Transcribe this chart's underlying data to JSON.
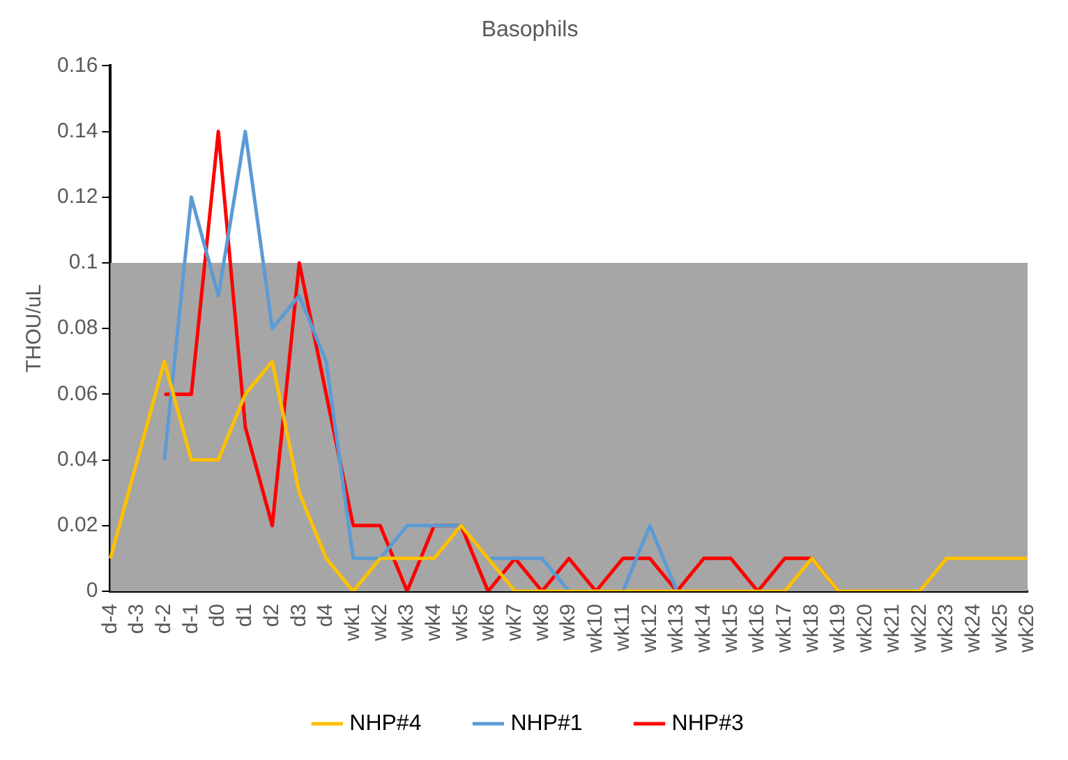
{
  "chart_data": {
    "type": "line",
    "title": "Basophils",
    "ylabel": "THOU/uL",
    "categories": [
      "d-4",
      "d-3",
      "d-2",
      "d-1",
      "d0",
      "d1",
      "d2",
      "d3",
      "d4",
      "wk1",
      "wk2",
      "wk3",
      "wk4",
      "wk5",
      "wk6",
      "wk7",
      "wk8",
      "wk9",
      "wk10",
      "wk11",
      "wk12",
      "wk13",
      "wk14",
      "wk15",
      "wk16",
      "wk17",
      "wk18",
      "wk19",
      "wk20",
      "wk21",
      "wk22",
      "wk23",
      "wk24",
      "wk25",
      "wk26"
    ],
    "series": [
      {
        "name": "NHP#4",
        "color": "#ffc000",
        "values": [
          0.01,
          0.04,
          0.07,
          0.04,
          0.04,
          0.06,
          0.07,
          0.03,
          0.01,
          0,
          0.01,
          0.01,
          0.01,
          0.02,
          0.01,
          0,
          0,
          0,
          0,
          0,
          0,
          0,
          0,
          0,
          0,
          0,
          0.01,
          0,
          0,
          0,
          0,
          0.01,
          0.01,
          0.01,
          0.01
        ]
      },
      {
        "name": "NHP#1",
        "color": "#5b9bd5",
        "values": [
          null,
          null,
          0.04,
          0.12,
          0.09,
          0.14,
          0.08,
          0.09,
          0.07,
          0.01,
          0.01,
          0.02,
          0.02,
          0.02,
          0.01,
          0.01,
          0.01,
          0,
          0,
          0,
          0.02,
          0,
          null,
          null,
          null,
          null,
          null,
          null,
          null,
          null,
          null,
          null,
          null,
          null,
          null
        ]
      },
      {
        "name": "NHP#3",
        "color": "#ff0000",
        "values": [
          null,
          null,
          0.06,
          0.06,
          0.14,
          0.05,
          0.02,
          0.1,
          0.06,
          0.02,
          0.02,
          0,
          0.02,
          0.02,
          0,
          0.01,
          0,
          0.01,
          0,
          0.01,
          0.01,
          0,
          0.01,
          0.01,
          0,
          0.01,
          0.01,
          0,
          null,
          null,
          null,
          null,
          null,
          null,
          null
        ]
      }
    ],
    "ylim": [
      0,
      0.16
    ],
    "yticks": [
      0,
      0.02,
      0.04,
      0.06,
      0.08,
      0.1,
      0.12,
      0.14,
      0.16
    ],
    "bands": [
      {
        "axis": "y",
        "from": 0,
        "to": 0.1,
        "color": "#a6a6a6"
      }
    ],
    "grid": false,
    "legend": "bottom",
    "marker": "none",
    "line_style": "solid"
  }
}
